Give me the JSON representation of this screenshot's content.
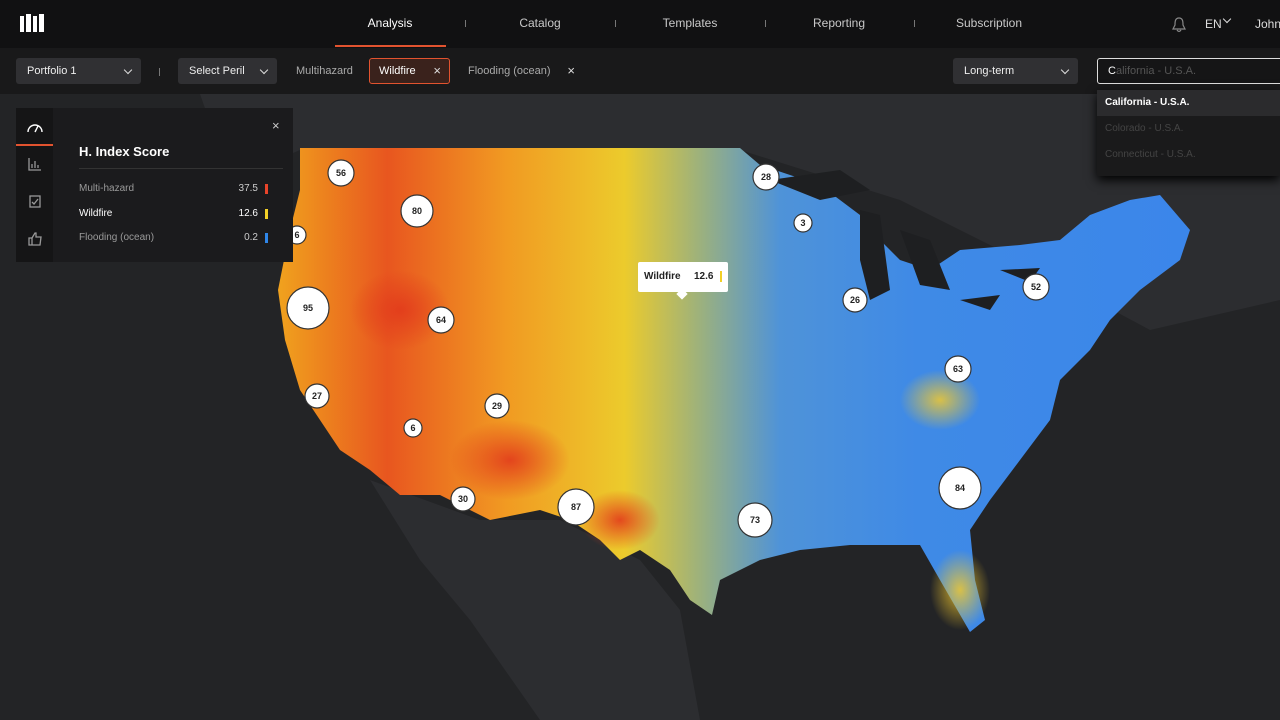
{
  "nav": {
    "items": [
      "Analysis",
      "Catalog",
      "Templates",
      "Reporting",
      "Subscription"
    ],
    "active": 0,
    "language": "EN",
    "user": "John"
  },
  "toolbar": {
    "portfolio": "Portfolio 1",
    "peril_select": "Select Peril",
    "perils": [
      "Multihazard",
      "Wildfire",
      "Flooding (ocean)"
    ],
    "selected_peril": 1,
    "horizon": "Long-term",
    "search": {
      "typed": "C",
      "completion": "alifornia - U.S.A.",
      "suggestions": [
        "California - U.S.A.",
        "Colorado - U.S.A.",
        "Connecticut - U.S.A."
      ]
    }
  },
  "panel": {
    "title": "H. Index Score",
    "rows": [
      {
        "label": "Multi-hazard",
        "value": 37.5,
        "color": "#e8442a"
      },
      {
        "label": "Wildfire",
        "value": 12.6,
        "color": "#f2d027"
      },
      {
        "label": "Flooding (ocean)",
        "value": 0.2,
        "color": "#2f86e8"
      }
    ],
    "selected_row": 1
  },
  "tooltip": {
    "label": "Wildfire",
    "value": 12.6,
    "color": "#f2d027"
  },
  "map": {
    "clusters": [
      56,
      80,
      6,
      95,
      64,
      27,
      6,
      29,
      30,
      87,
      73,
      84,
      63,
      26,
      52,
      3,
      28
    ]
  }
}
